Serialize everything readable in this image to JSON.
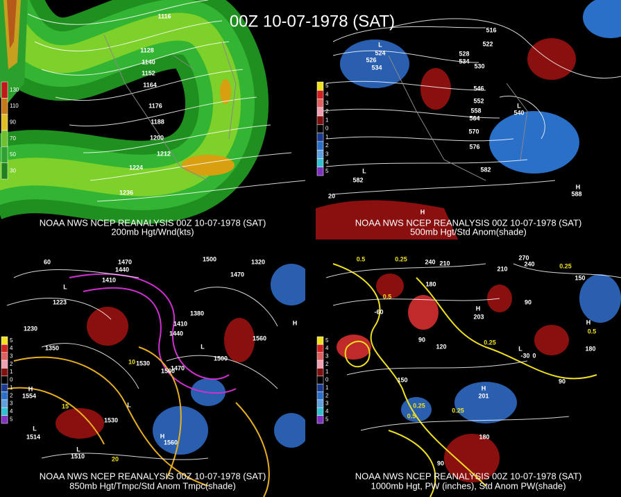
{
  "title": "00Z 10-07-1978 (SAT)",
  "panels": [
    {
      "caption": "NOAA NWS NCEP REANALYSIS 00Z 10-07-1978 (SAT)",
      "subtitle": "200mb Hgt/Wnd(kts)",
      "legend": [
        "130",
        "110",
        "90",
        "70",
        "50",
        "30"
      ],
      "labels": [
        "1116",
        "1128",
        "1140",
        "1152",
        "1164",
        "1176",
        "1188",
        "1200",
        "1212",
        "1224",
        "1236"
      ]
    },
    {
      "caption": "NOAA NWS NCEP REANALYSIS 00Z 10-07-1978 (SAT)",
      "subtitle": "500mb Hgt/Std Anom(shade)",
      "legend": [
        "5",
        "4",
        "3",
        "2",
        "1",
        "0",
        "1",
        "2",
        "3",
        "4",
        "5"
      ],
      "labels": [
        "L",
        "524",
        "526",
        "534",
        "516",
        "522",
        "528",
        "534",
        "530",
        "546",
        "552",
        "558",
        "564",
        "570",
        "576",
        "L",
        "540",
        "582",
        "L",
        "582",
        "H",
        "588",
        "H",
        "20"
      ]
    },
    {
      "caption": "NOAA NWS NCEP REANALYSIS 00Z 10-07-1978 (SAT)",
      "subtitle": "850mb Hgt/Tmpc/Std Anom Tmpc(shade)",
      "legend": [
        "5",
        "4",
        "3",
        "2",
        "1",
        "0",
        "1",
        "2",
        "3",
        "4",
        "5"
      ],
      "labels": [
        "1470",
        "1440",
        "1410",
        "1500",
        "1320",
        "1470",
        "L",
        "1223",
        "1380",
        "1410",
        "1440",
        "1230",
        "1350",
        "1560",
        "H",
        "1530",
        "10",
        "1560",
        "1470",
        "L",
        "1500",
        "H",
        "1554",
        "15",
        "L",
        "1530",
        "L",
        "1514",
        "H",
        "1560",
        "L",
        "1510",
        "20",
        "60"
      ]
    },
    {
      "caption": "NOAA NWS NCEP REANALYSIS 00Z 10-07-1978 (SAT)",
      "subtitle": "1000mb Hgt, PW (inches), Std Anom PW(shade)",
      "legend": [
        "5",
        "4",
        "3",
        "2",
        "1",
        "0",
        "1",
        "2",
        "3",
        "4",
        "5"
      ],
      "labels": [
        "0.5",
        "0.25",
        "240",
        "210",
        "270",
        "240",
        "210",
        "0.25",
        "150",
        "180",
        "0.5",
        "90",
        "H",
        "203",
        "-60",
        "120",
        "90",
        "H",
        "0.5",
        "0.25",
        "180",
        "L",
        "-30",
        "0",
        "90",
        "150",
        "H",
        "201",
        "0.25",
        "0.25",
        "0.5",
        "180",
        "90"
      ]
    }
  ]
}
